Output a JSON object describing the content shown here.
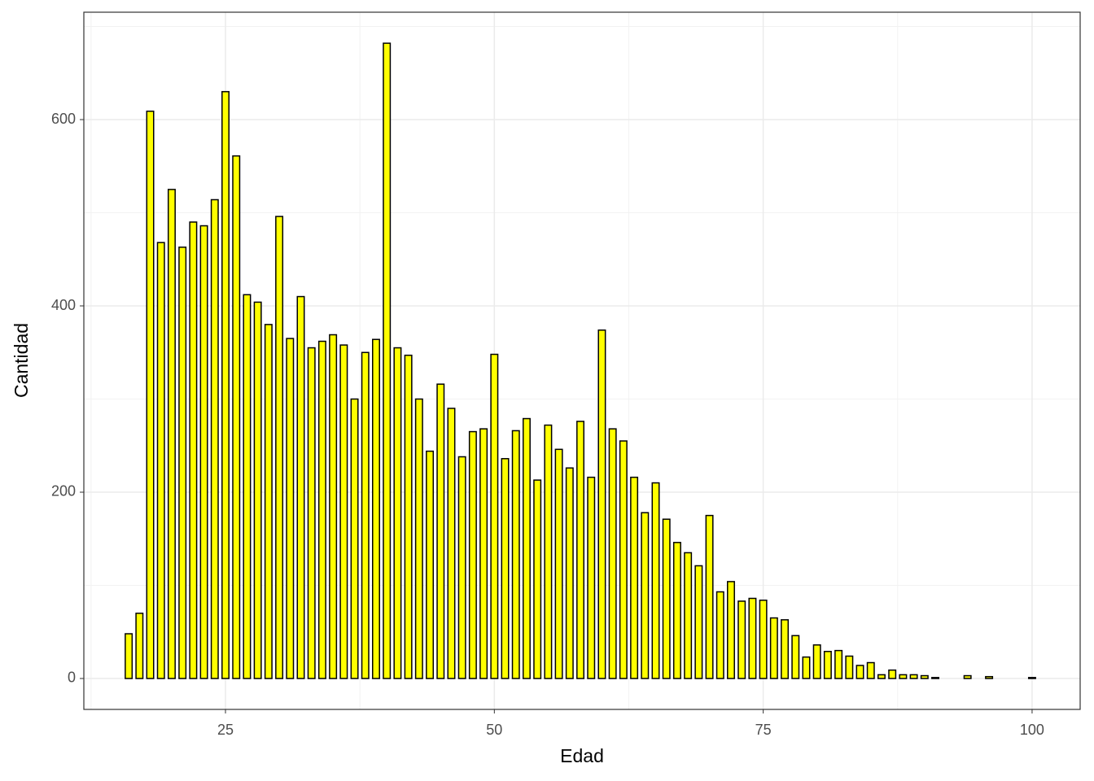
{
  "chart_data": {
    "type": "bar",
    "x_label": "Edad",
    "y_label": "Cantidad",
    "x": [
      16,
      17,
      18,
      19,
      20,
      21,
      22,
      23,
      24,
      25,
      26,
      27,
      28,
      29,
      30,
      31,
      32,
      33,
      34,
      35,
      36,
      37,
      38,
      39,
      40,
      41,
      42,
      43,
      44,
      45,
      46,
      47,
      48,
      49,
      50,
      51,
      52,
      53,
      54,
      55,
      56,
      57,
      58,
      59,
      60,
      61,
      62,
      63,
      64,
      65,
      66,
      67,
      68,
      69,
      70,
      71,
      72,
      73,
      74,
      75,
      76,
      77,
      78,
      79,
      80,
      81,
      82,
      83,
      84,
      85,
      86,
      87,
      88,
      89,
      90,
      91,
      92,
      93,
      94,
      95,
      96,
      97,
      98,
      99,
      100
    ],
    "values": [
      48,
      70,
      609,
      468,
      525,
      463,
      490,
      486,
      514,
      630,
      561,
      412,
      404,
      380,
      496,
      365,
      410,
      355,
      362,
      369,
      358,
      300,
      350,
      364,
      682,
      355,
      347,
      300,
      244,
      316,
      290,
      238,
      265,
      268,
      348,
      236,
      266,
      279,
      213,
      272,
      246,
      226,
      276,
      216,
      374,
      268,
      255,
      216,
      178,
      210,
      171,
      146,
      135,
      121,
      175,
      93,
      104,
      83,
      86,
      84,
      65,
      63,
      46,
      23,
      36,
      29,
      30,
      24,
      14,
      17,
      4,
      9,
      4,
      4,
      3,
      1,
      0,
      0,
      3,
      0,
      2,
      0,
      0,
      0,
      1
    ],
    "color": "#ffff00",
    "edgecolor": "#000000",
    "xlim": [
      11.83,
      104.47
    ],
    "xticks": [
      25,
      50,
      75,
      100
    ],
    "xminor": [
      12.5,
      37.5,
      62.5,
      87.5
    ],
    "ylim": [
      -33.2,
      715.3
    ],
    "yticks": [
      0,
      200,
      400,
      600
    ],
    "yminor": [
      100,
      300,
      500,
      700
    ],
    "grid": true
  }
}
